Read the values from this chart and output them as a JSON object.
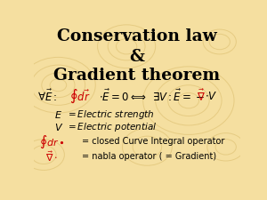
{
  "title_line1": "Conservation law",
  "title_line2": "&",
  "title_line3": "Gradient theorem",
  "bg_color": "#f5dfa0",
  "title_color": "#000000",
  "red_color": "#cc0000",
  "figsize": [
    3.0,
    2.26
  ],
  "dpi": 100
}
